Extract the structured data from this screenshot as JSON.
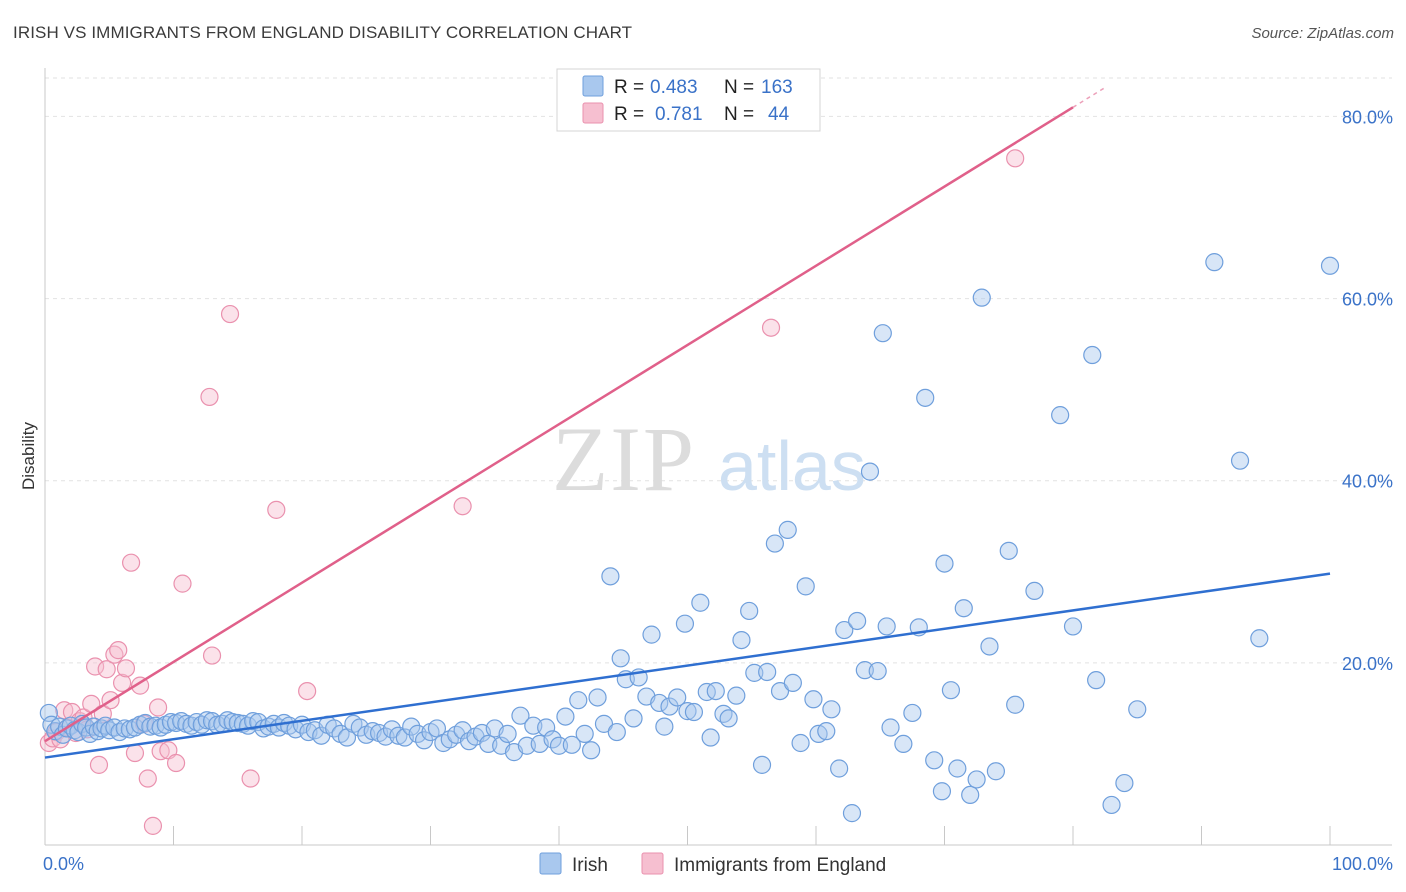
{
  "title": "IRISH VS IMMIGRANTS FROM ENGLAND DISABILITY CORRELATION CHART",
  "source": "Source: ZipAtlas.com",
  "watermark": {
    "zip": "ZIP",
    "atlas": "atlas"
  },
  "colors": {
    "irish_fill": "#a9c8ee",
    "irish_stroke": "#6f9fdc",
    "irish_line": "#2f6fd0",
    "england_fill": "#f6bfd0",
    "england_stroke": "#ea91ae",
    "england_line": "#e0608a",
    "tick_label": "#3a72c8",
    "grid": "#e2e2e2"
  },
  "legend": {
    "r_label": "R =",
    "n_label": "N =",
    "rows": [
      {
        "series": "Irish",
        "r": "0.483",
        "n": "163"
      },
      {
        "series": "Immigrants from England",
        "r": "0.781",
        "n": "44"
      }
    ]
  },
  "bottom_legend": [
    "Irish",
    "Immigrants from England"
  ],
  "chart_data": {
    "type": "scatter",
    "title": "IRISH VS IMMIGRANTS FROM ENGLAND DISABILITY CORRELATION CHART",
    "xlabel": "",
    "ylabel": "Disability",
    "xlim": [
      0,
      100
    ],
    "ylim": [
      0,
      84
    ],
    "x_tick_labels": [
      "0.0%",
      "100.0%"
    ],
    "y_ticks": [
      20,
      40,
      60,
      80
    ],
    "y_tick_labels": [
      "20.0%",
      "40.0%",
      "60.0%",
      "80.0%"
    ],
    "grid": true,
    "legend_placement": "top-center",
    "series": [
      {
        "name": "Irish",
        "r": 0.483,
        "n": 163,
        "trend": {
          "x": [
            0,
            100
          ],
          "y": [
            9.6,
            29.8
          ]
        },
        "points": [
          [
            0.3,
            14.5
          ],
          [
            0.5,
            13.2
          ],
          [
            0.8,
            12.5
          ],
          [
            1.1,
            13.0
          ],
          [
            1.4,
            12.1
          ],
          [
            1.7,
            12.8
          ],
          [
            2.0,
            13.1
          ],
          [
            2.3,
            12.6
          ],
          [
            2.6,
            12.4
          ],
          [
            2.9,
            13.3
          ],
          [
            3.2,
            12.9
          ],
          [
            3.5,
            12.2
          ],
          [
            3.8,
            13.0
          ],
          [
            4.1,
            12.5
          ],
          [
            4.4,
            12.8
          ],
          [
            4.7,
            13.1
          ],
          [
            5.0,
            12.6
          ],
          [
            5.4,
            12.9
          ],
          [
            5.8,
            12.4
          ],
          [
            6.2,
            12.8
          ],
          [
            6.6,
            12.7
          ],
          [
            7.0,
            12.9
          ],
          [
            7.4,
            13.2
          ],
          [
            7.8,
            13.4
          ],
          [
            8.2,
            13.0
          ],
          [
            8.6,
            13.1
          ],
          [
            9.0,
            12.9
          ],
          [
            9.4,
            13.2
          ],
          [
            9.8,
            13.5
          ],
          [
            10.2,
            13.4
          ],
          [
            10.6,
            13.6
          ],
          [
            11.0,
            13.3
          ],
          [
            11.4,
            13.1
          ],
          [
            11.8,
            13.5
          ],
          [
            12.2,
            13.2
          ],
          [
            12.6,
            13.7
          ],
          [
            13.0,
            13.6
          ],
          [
            13.4,
            13.2
          ],
          [
            13.8,
            13.3
          ],
          [
            14.2,
            13.7
          ],
          [
            14.6,
            13.5
          ],
          [
            15.0,
            13.4
          ],
          [
            15.4,
            13.3
          ],
          [
            15.8,
            13.1
          ],
          [
            16.2,
            13.6
          ],
          [
            16.6,
            13.5
          ],
          [
            17.0,
            12.8
          ],
          [
            17.4,
            13.0
          ],
          [
            17.8,
            13.3
          ],
          [
            18.2,
            12.9
          ],
          [
            18.6,
            13.4
          ],
          [
            19.0,
            13.1
          ],
          [
            19.5,
            12.7
          ],
          [
            20.0,
            13.2
          ],
          [
            20.5,
            12.4
          ],
          [
            21.0,
            12.6
          ],
          [
            21.5,
            12.0
          ],
          [
            22.0,
            13.2
          ],
          [
            22.5,
            12.8
          ],
          [
            23.0,
            12.2
          ],
          [
            23.5,
            11.8
          ],
          [
            24.0,
            13.3
          ],
          [
            24.5,
            12.9
          ],
          [
            25.0,
            12.1
          ],
          [
            25.5,
            12.5
          ],
          [
            26.0,
            12.3
          ],
          [
            26.5,
            11.9
          ],
          [
            27.0,
            12.7
          ],
          [
            27.5,
            12.0
          ],
          [
            28.0,
            11.8
          ],
          [
            28.5,
            13.0
          ],
          [
            29.0,
            12.2
          ],
          [
            29.5,
            11.5
          ],
          [
            30.0,
            12.4
          ],
          [
            30.5,
            12.8
          ],
          [
            31.0,
            11.2
          ],
          [
            31.5,
            11.6
          ],
          [
            32.0,
            12.1
          ],
          [
            32.5,
            12.6
          ],
          [
            33.0,
            11.4
          ],
          [
            33.5,
            11.9
          ],
          [
            34.0,
            12.3
          ],
          [
            34.5,
            11.1
          ],
          [
            35.0,
            12.8
          ],
          [
            35.5,
            10.9
          ],
          [
            36.0,
            12.2
          ],
          [
            36.5,
            10.2
          ],
          [
            37.0,
            14.2
          ],
          [
            37.5,
            10.9
          ],
          [
            38.0,
            13.1
          ],
          [
            38.5,
            11.1
          ],
          [
            39.0,
            12.9
          ],
          [
            39.5,
            11.6
          ],
          [
            40.0,
            10.9
          ],
          [
            40.5,
            14.1
          ],
          [
            41.0,
            11.0
          ],
          [
            41.5,
            15.9
          ],
          [
            42.0,
            12.2
          ],
          [
            42.5,
            10.4
          ],
          [
            43.0,
            16.2
          ],
          [
            43.5,
            13.3
          ],
          [
            44.0,
            29.5
          ],
          [
            44.5,
            12.4
          ],
          [
            44.8,
            20.5
          ],
          [
            45.2,
            18.2
          ],
          [
            45.8,
            13.9
          ],
          [
            46.2,
            18.4
          ],
          [
            46.8,
            16.3
          ],
          [
            47.2,
            23.1
          ],
          [
            47.8,
            15.6
          ],
          [
            48.2,
            13.0
          ],
          [
            48.6,
            15.2
          ],
          [
            49.2,
            16.2
          ],
          [
            49.8,
            24.3
          ],
          [
            50.0,
            14.7
          ],
          [
            50.5,
            14.6
          ],
          [
            51.0,
            26.6
          ],
          [
            51.5,
            16.8
          ],
          [
            51.8,
            11.8
          ],
          [
            52.2,
            16.9
          ],
          [
            52.8,
            14.4
          ],
          [
            53.2,
            13.9
          ],
          [
            53.8,
            16.4
          ],
          [
            54.2,
            22.5
          ],
          [
            54.8,
            25.7
          ],
          [
            55.2,
            18.9
          ],
          [
            55.8,
            8.8
          ],
          [
            56.2,
            19.0
          ],
          [
            56.8,
            33.1
          ],
          [
            57.2,
            16.9
          ],
          [
            57.8,
            34.6
          ],
          [
            58.2,
            17.8
          ],
          [
            58.8,
            11.2
          ],
          [
            59.2,
            28.4
          ],
          [
            59.8,
            16.0
          ],
          [
            60.2,
            12.2
          ],
          [
            60.8,
            12.5
          ],
          [
            61.2,
            14.9
          ],
          [
            61.8,
            8.4
          ],
          [
            62.2,
            23.6
          ],
          [
            62.8,
            3.5
          ],
          [
            63.2,
            24.6
          ],
          [
            63.8,
            19.2
          ],
          [
            64.2,
            41.0
          ],
          [
            64.8,
            19.1
          ],
          [
            65.2,
            56.2
          ],
          [
            65.5,
            24.0
          ],
          [
            65.8,
            12.9
          ],
          [
            66.8,
            11.1
          ],
          [
            67.5,
            14.5
          ],
          [
            68.0,
            23.9
          ],
          [
            68.5,
            49.1
          ],
          [
            69.2,
            9.3
          ],
          [
            69.8,
            5.9
          ],
          [
            70.0,
            30.9
          ],
          [
            70.5,
            17.0
          ],
          [
            71.0,
            8.4
          ],
          [
            71.5,
            26.0
          ],
          [
            72.0,
            5.5
          ],
          [
            72.5,
            7.2
          ],
          [
            72.9,
            60.1
          ],
          [
            73.5,
            21.8
          ],
          [
            74.0,
            8.1
          ],
          [
            75.0,
            32.3
          ],
          [
            75.5,
            15.4
          ],
          [
            77.0,
            27.9
          ],
          [
            79.0,
            47.2
          ],
          [
            80.0,
            24.0
          ],
          [
            81.5,
            53.8
          ],
          [
            81.8,
            18.1
          ],
          [
            83.0,
            4.4
          ],
          [
            84.0,
            6.8
          ],
          [
            85.0,
            14.9
          ],
          [
            91.0,
            64.0
          ],
          [
            93.0,
            42.2
          ],
          [
            94.5,
            22.7
          ],
          [
            100.0,
            63.6
          ]
        ]
      },
      {
        "name": "Immigrants from England",
        "r": 0.781,
        "n": 44,
        "trend": {
          "x": [
            0,
            80
          ],
          "y": [
            11.4,
            81.0
          ]
        },
        "points": [
          [
            0.3,
            11.2
          ],
          [
            0.6,
            11.7
          ],
          [
            0.9,
            12.4
          ],
          [
            1.2,
            11.6
          ],
          [
            1.5,
            14.8
          ],
          [
            1.8,
            12.9
          ],
          [
            2.1,
            14.6
          ],
          [
            2.4,
            12.3
          ],
          [
            2.7,
            13.6
          ],
          [
            3.0,
            14.0
          ],
          [
            3.3,
            12.7
          ],
          [
            3.6,
            15.5
          ],
          [
            3.9,
            19.6
          ],
          [
            4.2,
            8.8
          ],
          [
            4.5,
            14.4
          ],
          [
            4.8,
            19.3
          ],
          [
            5.1,
            15.9
          ],
          [
            5.4,
            20.9
          ],
          [
            5.7,
            21.4
          ],
          [
            6.0,
            17.8
          ],
          [
            6.3,
            19.4
          ],
          [
            6.7,
            31.0
          ],
          [
            7.0,
            10.1
          ],
          [
            7.4,
            17.5
          ],
          [
            7.7,
            13.3
          ],
          [
            8.0,
            7.3
          ],
          [
            8.4,
            2.1
          ],
          [
            8.8,
            15.1
          ],
          [
            9.0,
            10.3
          ],
          [
            9.6,
            10.4
          ],
          [
            10.2,
            9.0
          ],
          [
            10.7,
            28.7
          ],
          [
            12.8,
            49.2
          ],
          [
            13.0,
            20.8
          ],
          [
            14.4,
            58.3
          ],
          [
            16.0,
            7.3
          ],
          [
            18.0,
            36.8
          ],
          [
            20.4,
            16.9
          ],
          [
            32.5,
            37.2
          ],
          [
            56.5,
            56.8
          ],
          [
            75.5,
            75.4
          ]
        ]
      }
    ]
  }
}
